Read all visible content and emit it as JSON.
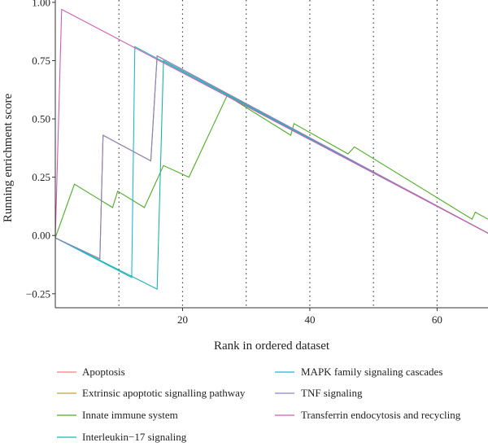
{
  "chart_data": {
    "type": "line",
    "title": "",
    "xlabel": "Rank in ordered dataset",
    "ylabel": "Running enrichment score",
    "xlim": [
      0,
      68
    ],
    "ylim": [
      -0.31,
      1.01
    ],
    "x_ticks": [
      20,
      40,
      60
    ],
    "y_ticks": [
      -0.25,
      0.0,
      0.25,
      0.5,
      0.75,
      1.0
    ],
    "y_tick_labels": [
      "−0.25",
      "0.00",
      "0.25",
      "0.50",
      "0.75",
      "1.00"
    ],
    "vlines": [
      10,
      20,
      30,
      40,
      50,
      60
    ],
    "grid": false,
    "legend_position": "bottom",
    "series": [
      {
        "name": "Apoptosis",
        "color": "#f08080",
        "points": [
          [
            0,
            -0.01
          ],
          [
            7,
            -0.1
          ],
          [
            7.5,
            0.43
          ],
          [
            15,
            0.32
          ],
          [
            16,
            0.77
          ],
          [
            68,
            0.01
          ]
        ]
      },
      {
        "name": "Extrinsic apoptotic signalling pathway",
        "color": "#c8a040",
        "points": [
          [
            0,
            -0.01
          ],
          [
            7,
            -0.1
          ],
          [
            7.5,
            0.43
          ],
          [
            15,
            0.32
          ],
          [
            16,
            0.77
          ],
          [
            68,
            0.01
          ]
        ]
      },
      {
        "name": "Innate immune system",
        "color": "#4dac26",
        "points": [
          [
            0,
            -0.01
          ],
          [
            3,
            0.22
          ],
          [
            9,
            0.12
          ],
          [
            9.8,
            0.19
          ],
          [
            14,
            0.12
          ],
          [
            17,
            0.3
          ],
          [
            21,
            0.25
          ],
          [
            27,
            0.6
          ],
          [
            37,
            0.43
          ],
          [
            37.5,
            0.48
          ],
          [
            46,
            0.35
          ],
          [
            47,
            0.38
          ],
          [
            65.5,
            0.07
          ],
          [
            66,
            0.1
          ],
          [
            68,
            0.07
          ]
        ]
      },
      {
        "name": "Interleukin−17 signaling",
        "color": "#20b2aa",
        "points": [
          [
            0,
            -0.01
          ],
          [
            16,
            -0.23
          ],
          [
            17,
            0.75
          ],
          [
            68,
            0.01
          ]
        ]
      },
      {
        "name": "MAPK family signaling cascades",
        "color": "#20b8c8",
        "points": [
          [
            0,
            -0.01
          ],
          [
            12,
            -0.18
          ],
          [
            12.5,
            0.81
          ],
          [
            68,
            0.01
          ]
        ]
      },
      {
        "name": "TNF signaling",
        "color": "#8a84c4",
        "points": [
          [
            0,
            -0.01
          ],
          [
            7,
            -0.1
          ],
          [
            7.5,
            0.43
          ],
          [
            15,
            0.32
          ],
          [
            16,
            0.77
          ],
          [
            68,
            0.01
          ]
        ]
      },
      {
        "name": "Transferrin endocytosis and recycling",
        "color": "#cc5fb0",
        "points": [
          [
            0,
            -0.01
          ],
          [
            1,
            0.97
          ],
          [
            68,
            0.01
          ]
        ]
      }
    ]
  }
}
